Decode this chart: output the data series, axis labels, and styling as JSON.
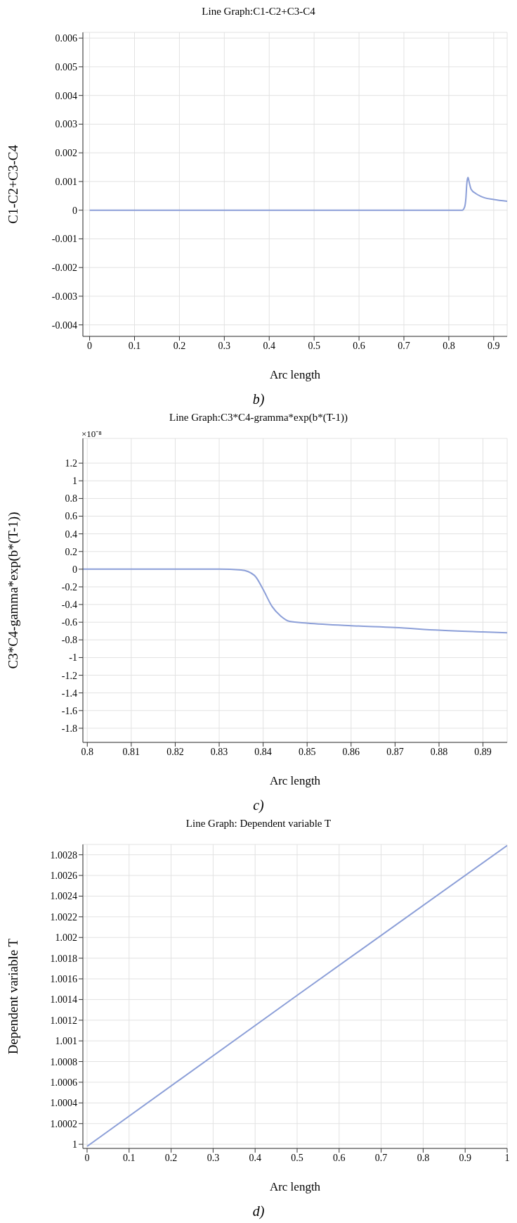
{
  "chart_data": [
    {
      "type": "line",
      "title": "Line Graph:C1-C2+C3-C4",
      "xlabel": "Arc length",
      "ylabel": "C1-C2+C3-C4",
      "annotations": [
        "b)"
      ],
      "grid": true,
      "legend": false,
      "marker": "none",
      "line_style": "solid",
      "xlim": [
        -0.015,
        0.93
      ],
      "xticks": [
        0,
        0.1,
        0.2,
        0.3,
        0.4,
        0.5,
        0.6,
        0.7,
        0.8,
        0.9
      ],
      "ylim": [
        -0.0044,
        0.0062
      ],
      "yticks": [
        -0.004,
        -0.003,
        -0.002,
        -0.001,
        0,
        0.001,
        0.002,
        0.003,
        0.004,
        0.005,
        0.006
      ],
      "series": [
        {
          "color": "#8c9fd8",
          "x": [
            0,
            0.2,
            0.4,
            0.6,
            0.8,
            0.82,
            0.83,
            0.835,
            0.838,
            0.84,
            0.842,
            0.843,
            0.845,
            0.85,
            0.86,
            0.87,
            0.88,
            0.9,
            0.93
          ],
          "values": [
            0,
            0,
            0,
            0,
            0,
            0,
            0,
            0.0001,
            0.0004,
            0.0009,
            0.00112,
            0.00114,
            0.001,
            0.00072,
            0.00058,
            0.00049,
            0.00043,
            0.00037,
            0.00031
          ]
        }
      ]
    },
    {
      "type": "line",
      "title": "Line Graph:C3*C4-gramma*exp(b*(T-1))",
      "xlabel": "Arc length",
      "ylabel": "C3*C4-gamma*exp(b*(T-1))",
      "annotations": [
        "×10⁻⁸",
        "c)"
      ],
      "grid": true,
      "legend": false,
      "marker": "none",
      "line_style": "solid",
      "xlim": [
        0.799,
        0.8955
      ],
      "xticks": [
        0.8,
        0.81,
        0.82,
        0.83,
        0.84,
        0.85,
        0.86,
        0.87,
        0.88,
        0.89
      ],
      "ylim": [
        -1.96,
        1.48
      ],
      "yticks": [
        -1.8,
        -1.6,
        -1.4,
        -1.2,
        -1,
        -0.8,
        -0.6,
        -0.4,
        -0.2,
        0,
        0.2,
        0.4,
        0.6,
        0.8,
        1,
        1.2
      ],
      "series": [
        {
          "color": "#8c9fd8",
          "x": [
            0.799,
            0.81,
            0.82,
            0.83,
            0.835,
            0.838,
            0.84,
            0.842,
            0.844,
            0.846,
            0.85,
            0.86,
            0.87,
            0.88,
            0.89,
            0.8955
          ],
          "values": [
            0,
            0,
            0,
            0,
            -0.01,
            -0.07,
            -0.23,
            -0.42,
            -0.53,
            -0.59,
            -0.61,
            -0.64,
            -0.66,
            -0.69,
            -0.71,
            -0.72
          ]
        }
      ]
    },
    {
      "type": "line",
      "title": "Line Graph: Dependent variable T",
      "xlabel": "Arc length",
      "ylabel": "Dependent variable T",
      "annotations": [
        "d)"
      ],
      "grid": true,
      "legend": false,
      "marker": "none",
      "line_style": "solid",
      "xlim": [
        -0.01,
        1
      ],
      "xticks": [
        0,
        0.1,
        0.2,
        0.3,
        0.4,
        0.5,
        0.6,
        0.7,
        0.8,
        0.9,
        1
      ],
      "ylim": [
        0.99996,
        1.0029
      ],
      "yticks": [
        1,
        1.0002,
        1.0004,
        1.0006,
        1.0008,
        1.001,
        1.0012,
        1.0014,
        1.0016,
        1.0018,
        1.002,
        1.0022,
        1.0024,
        1.0026,
        1.0028
      ],
      "series": [
        {
          "color": "#8c9fd8",
          "x": [
            0,
            0.5,
            1
          ],
          "values": [
            0.99998,
            1.00144,
            1.00289
          ]
        }
      ]
    }
  ]
}
